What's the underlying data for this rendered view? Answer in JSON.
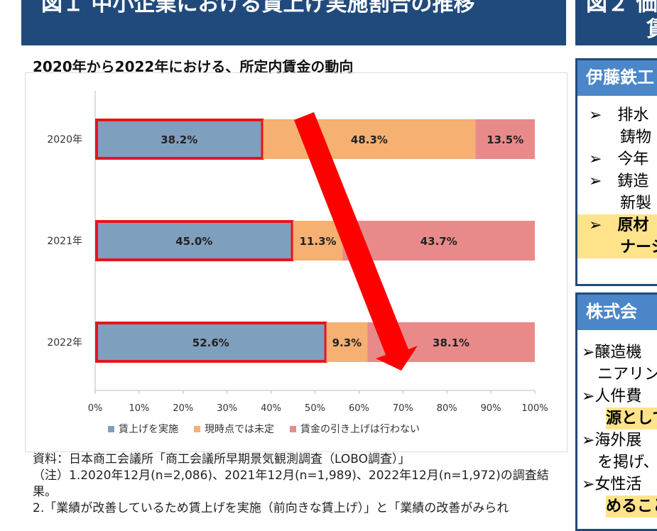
{
  "header": {
    "fig1_title": "図１ 中小企業における賃上げ実施割合の推移",
    "fig2_title": "図２ 価",
    "fig2_line2": "賃"
  },
  "subtitle": "2020年から2022年における、所定内賃金の動向",
  "chart_data": {
    "type": "bar",
    "orientation": "horizontal",
    "stacked": true,
    "categories": [
      "2020年",
      "2021年",
      "2022年"
    ],
    "series": [
      {
        "name": "賃上げを実施",
        "values": [
          38.2,
          45.0,
          52.6
        ],
        "labels": [
          "38.2%",
          "45.0%",
          "52.6%"
        ],
        "color": "#7f9fbf"
      },
      {
        "name": "現時点では未定",
        "values": [
          48.3,
          11.3,
          9.3
        ],
        "labels": [
          "48.3%",
          "11.3%",
          "9.3%"
        ],
        "color": "#f5b072"
      },
      {
        "name": "賃金の引き上げは行わない",
        "values": [
          13.5,
          43.7,
          38.1
        ],
        "labels": [
          "13.5%",
          "43.7%",
          "38.1%"
        ],
        "color": "#e98a8a"
      }
    ],
    "xlim": [
      0,
      100
    ],
    "xticks": [
      "0%",
      "10%",
      "20%",
      "30%",
      "40%",
      "50%",
      "60%",
      "70%",
      "80%",
      "90%",
      "100%"
    ],
    "legend": "bottom",
    "highlight_color": "#e8141b"
  },
  "notes": [
    "資料：日本商工会議所「商工会議所早期景気観測調査（LOBO調査）」",
    "（注）1.2020年12月(n=2,086)、2021年12月(n=1,989)、2022年12月(n=1,972)の調査結果。",
    "2.「業績が改善しているため賃上げを実施（前向きな賃上げ）」と「業績の改善がみられ"
  ],
  "panel1": {
    "title": "伊藤鉄工",
    "items": [
      "➢　排水",
      "　　鋳物",
      "➢　今年",
      "➢　鋳造",
      "　　新製"
    ],
    "hl_items": [
      "➢　原材",
      "　　ナーシ"
    ]
  },
  "panel2": {
    "title": "株式会",
    "items": [
      "➢醸造機",
      "　ニアリン",
      "➢人件費"
    ],
    "hl1": "源として",
    "items2": [
      "➢海外展",
      "　を掲げ、",
      "➢女性活"
    ],
    "hl2": "めること"
  }
}
